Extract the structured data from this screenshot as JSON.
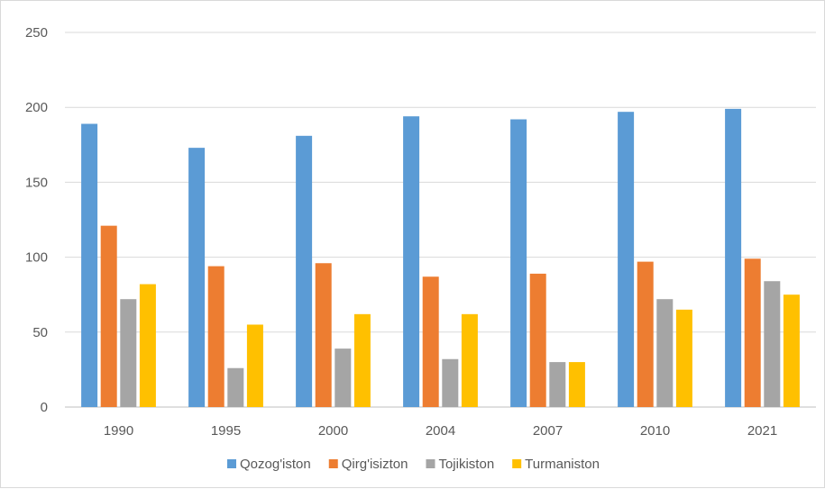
{
  "chart_data": {
    "type": "bar",
    "title": "",
    "xlabel": "",
    "ylabel": "",
    "categories": [
      "1990",
      "1995",
      "2000",
      "2004",
      "2007",
      "2010",
      "2021"
    ],
    "series": [
      {
        "name": "Qozog'iston",
        "color": "#5b9bd5",
        "values": [
          189,
          173,
          181,
          194,
          192,
          197,
          199
        ]
      },
      {
        "name": "Qirg'isizton",
        "color": "#ed7d31",
        "values": [
          121,
          94,
          96,
          87,
          89,
          97,
          99
        ]
      },
      {
        "name": "Tojikiston",
        "color": "#a5a5a5",
        "values": [
          72,
          26,
          39,
          32,
          30,
          72,
          84
        ]
      },
      {
        "name": "Turmaniston",
        "color": "#ffc000",
        "values": [
          82,
          55,
          62,
          62,
          30,
          65,
          75
        ]
      }
    ],
    "ylim": [
      0,
      250
    ],
    "yticks": [
      "0",
      "50",
      "100",
      "150",
      "200",
      "250"
    ],
    "grid": true,
    "legend": "bottom",
    "gridline_color": "#d9d9d9",
    "axis_color": "#bfbfbf"
  }
}
